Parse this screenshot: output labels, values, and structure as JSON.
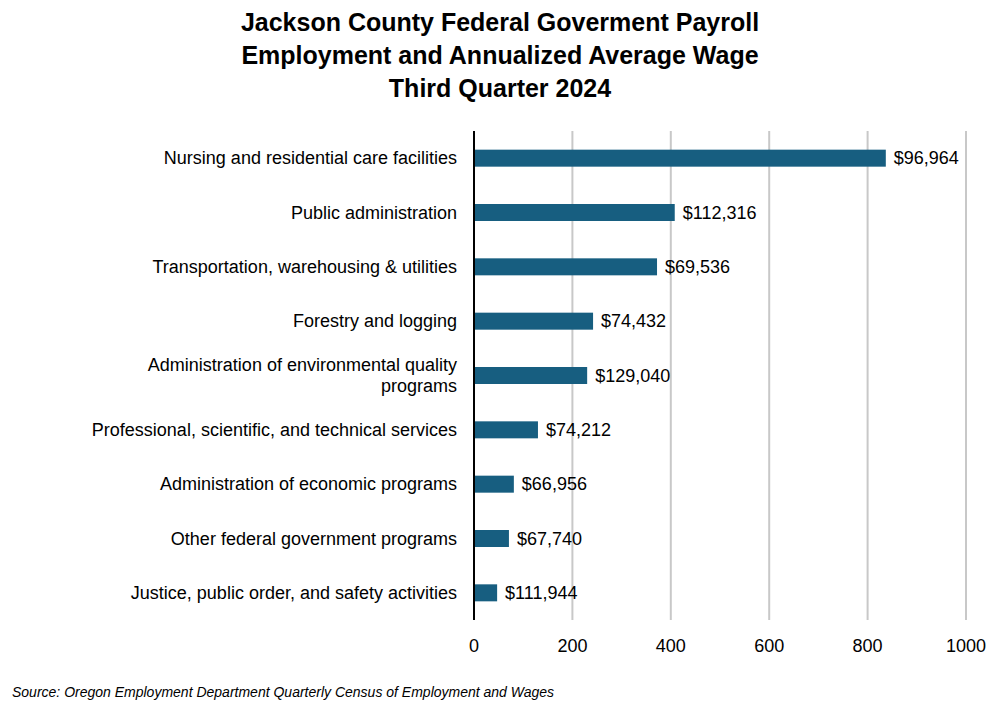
{
  "chart_data": {
    "type": "bar",
    "orientation": "horizontal",
    "title": [
      "Jackson County Federal Goverment Payroll",
      "Employment and Annualized Average Wage",
      "Third Quarter 2024"
    ],
    "source": "Source: Oregon Employment Department Quarterly Census of Employment and Wages",
    "categories": [
      "Nursing and residential care facilities",
      "Public administration",
      "Transportation, warehousing & utilities",
      "Forestry and logging",
      "Administration of environmental quality programs",
      "Professional, scientific, and technical services",
      "Administration of economic programs",
      "Other federal government programs",
      "Justice, public order, and safety activities"
    ],
    "values": [
      837,
      408,
      372,
      242,
      230,
      130,
      81,
      71,
      47
    ],
    "wages": [
      96964,
      112316,
      69536,
      74432,
      129040,
      74212,
      66956,
      67740,
      111944
    ],
    "wage_labels": [
      "$96,964",
      "$112,316",
      "$69,536",
      "$74,432",
      "$129,040",
      "$74,212",
      "$66,956",
      "$67,740",
      "$111,944"
    ],
    "color": "#175e80",
    "xlim": [
      0,
      1000
    ],
    "xticks": [
      0,
      200,
      400,
      600,
      800,
      1000
    ],
    "grid": true
  }
}
